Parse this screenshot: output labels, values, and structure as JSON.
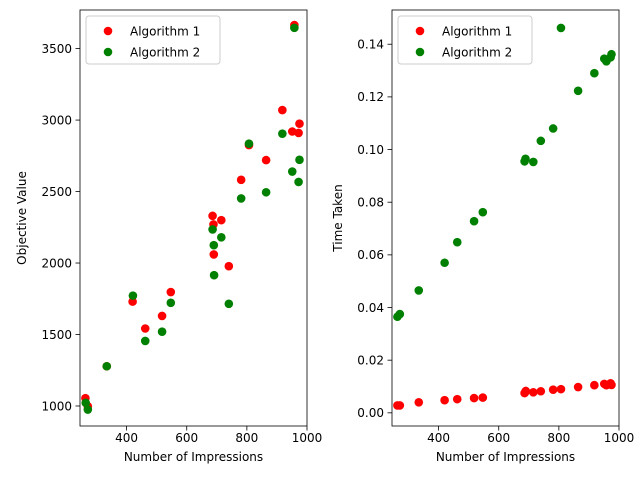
{
  "chart_data": [
    {
      "type": "scatter",
      "title": "",
      "xlabel": "Number of Impressions",
      "ylabel": "Objective Value",
      "xlim": [
        245,
        1000
      ],
      "ylim": [
        860,
        3770
      ],
      "xticks": [
        400,
        600,
        800,
        1000
      ],
      "xtick_labels": [
        "400",
        "600",
        "800",
        "1000"
      ],
      "yticks": [
        1000,
        1500,
        2000,
        2500,
        3000,
        3500
      ],
      "ytick_labels": [
        "1000",
        "1500",
        "2000",
        "2500",
        "3000",
        "3500"
      ],
      "grid": false,
      "legend_position": "upper-left",
      "series": [
        {
          "name": "Algorithm 1",
          "color": "#ff0000",
          "points": [
            [
              263,
              1055
            ],
            [
              271,
              998
            ],
            [
              334,
              1278
            ],
            [
              420,
              1730
            ],
            [
              462,
              1542
            ],
            [
              518,
              1630
            ],
            [
              547,
              1797
            ],
            [
              686,
              2330
            ],
            [
              689,
              2270
            ],
            [
              690,
              2060
            ],
            [
              715,
              2300
            ],
            [
              740,
              1978
            ],
            [
              781,
              2582
            ],
            [
              807,
              2825
            ],
            [
              864,
              2720
            ],
            [
              918,
              3070
            ],
            [
              951,
              2920
            ],
            [
              958,
              3665
            ],
            [
              972,
              2910
            ],
            [
              975,
              2975
            ]
          ]
        },
        {
          "name": "Algorithm 2",
          "color": "#008000",
          "points": [
            [
              264,
              1022
            ],
            [
              271,
              975
            ],
            [
              334,
              1278
            ],
            [
              421,
              1772
            ],
            [
              462,
              1455
            ],
            [
              518,
              1520
            ],
            [
              547,
              1722
            ],
            [
              686,
              2235
            ],
            [
              690,
              2125
            ],
            [
              691,
              1915
            ],
            [
              715,
              2180
            ],
            [
              740,
              1715
            ],
            [
              781,
              2452
            ],
            [
              807,
              2835
            ],
            [
              864,
              2495
            ],
            [
              918,
              2905
            ],
            [
              951,
              2640
            ],
            [
              958,
              3645
            ],
            [
              972,
              2567
            ],
            [
              975,
              2722
            ]
          ]
        }
      ]
    },
    {
      "type": "scatter",
      "title": "",
      "xlabel": "Number of Impressions",
      "ylabel": "Time Taken",
      "xlim": [
        245,
        1000
      ],
      "ylim": [
        -0.005,
        0.153
      ],
      "xticks": [
        400,
        600,
        800,
        1000
      ],
      "xtick_labels": [
        "400",
        "600",
        "800",
        "1000"
      ],
      "yticks": [
        0.0,
        0.02,
        0.04,
        0.06,
        0.08,
        0.1,
        0.12,
        0.14
      ],
      "ytick_labels": [
        "0.00",
        "0.02",
        "0.04",
        "0.06",
        "0.08",
        "0.10",
        "0.12",
        "0.14"
      ],
      "grid": false,
      "legend_position": "upper-left",
      "series": [
        {
          "name": "Algorithm 1",
          "color": "#ff0000",
          "points": [
            [
              263,
              0.0028
            ],
            [
              271,
              0.0028
            ],
            [
              334,
              0.004
            ],
            [
              420,
              0.0048
            ],
            [
              462,
              0.0052
            ],
            [
              518,
              0.0056
            ],
            [
              547,
              0.0058
            ],
            [
              686,
              0.0075
            ],
            [
              689,
              0.008
            ],
            [
              690,
              0.0083
            ],
            [
              715,
              0.0078
            ],
            [
              740,
              0.0082
            ],
            [
              781,
              0.0088
            ],
            [
              807,
              0.009
            ],
            [
              864,
              0.0098
            ],
            [
              918,
              0.0105
            ],
            [
              951,
              0.011
            ],
            [
              958,
              0.0105
            ],
            [
              972,
              0.0112
            ],
            [
              975,
              0.0106
            ]
          ]
        },
        {
          "name": "Algorithm 2",
          "color": "#008000",
          "points": [
            [
              263,
              0.0365
            ],
            [
              271,
              0.0375
            ],
            [
              334,
              0.0465
            ],
            [
              420,
              0.057
            ],
            [
              462,
              0.0648
            ],
            [
              518,
              0.0728
            ],
            [
              547,
              0.0762
            ],
            [
              686,
              0.0955
            ],
            [
              689,
              0.0965
            ],
            [
              715,
              0.0953
            ],
            [
              740,
              0.1033
            ],
            [
              781,
              0.108
            ],
            [
              807,
              0.1462
            ],
            [
              864,
              0.1223
            ],
            [
              918,
              0.129
            ],
            [
              951,
              0.1345
            ],
            [
              958,
              0.1335
            ],
            [
              972,
              0.135
            ],
            [
              975,
              0.1362
            ]
          ]
        }
      ]
    }
  ]
}
